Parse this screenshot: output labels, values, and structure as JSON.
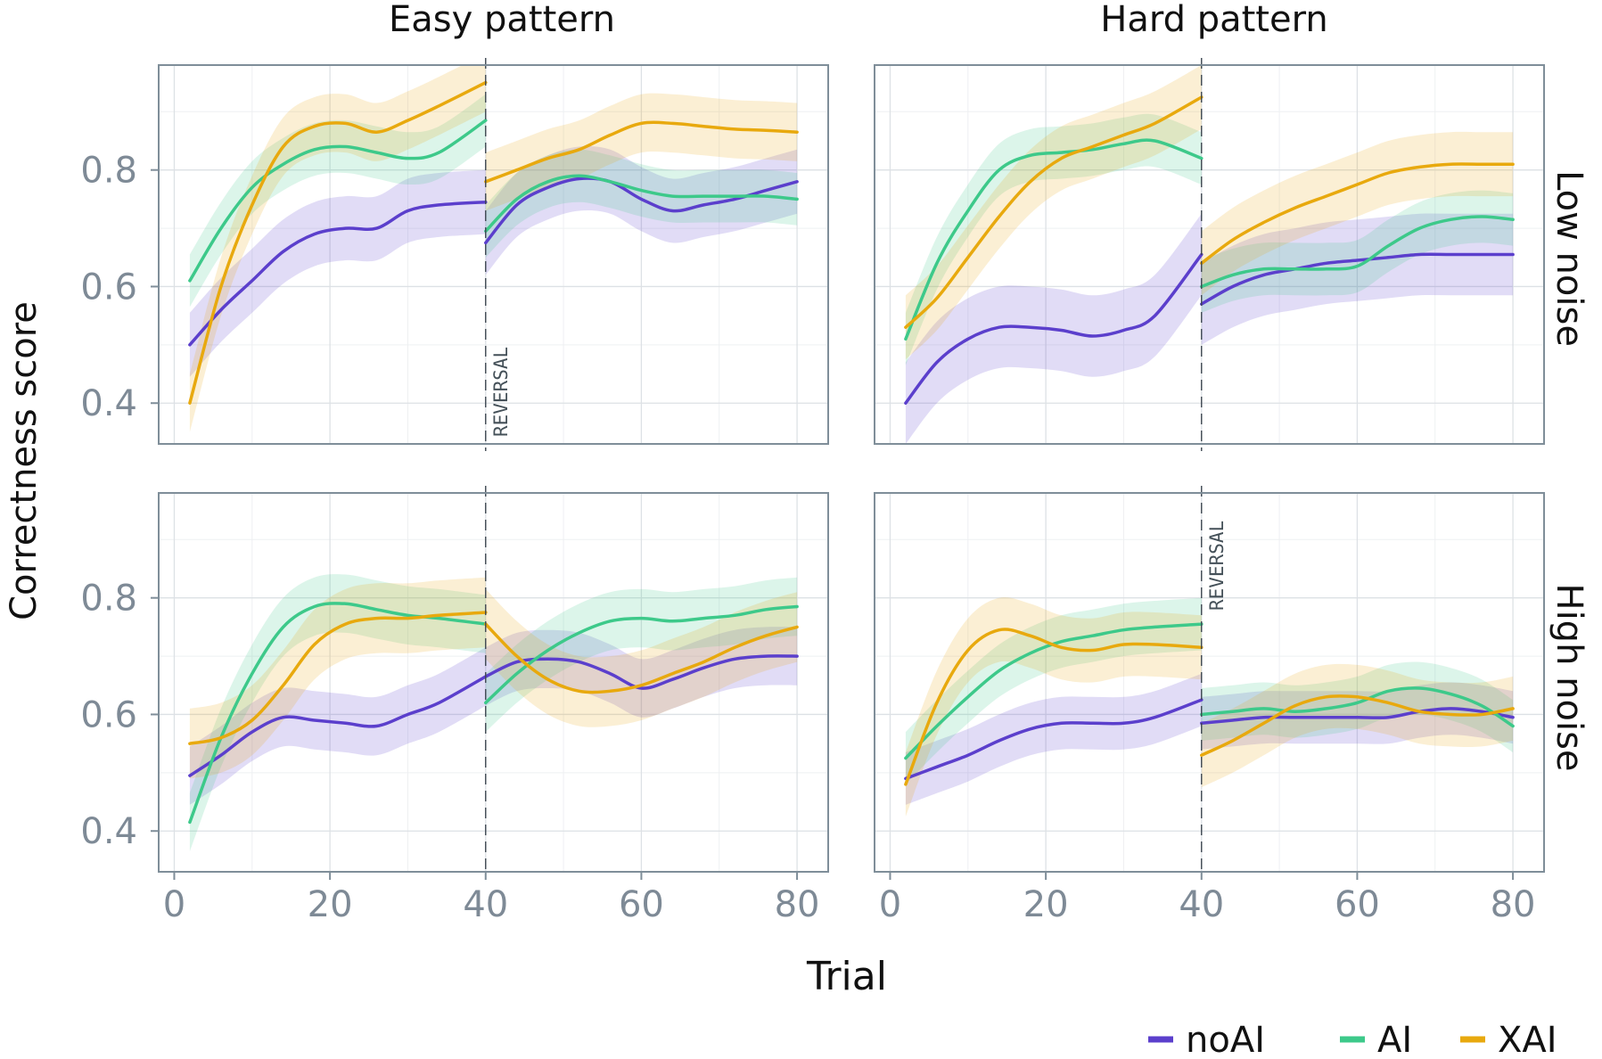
{
  "colors": {
    "noAI": "#5b3fcc",
    "AI": "#3dc98a",
    "XAI": "#e8a90e",
    "panel_border": "#7f8e99",
    "grid": "#dde1e5",
    "tick_text": "#7e8a96"
  },
  "chart_data": {
    "type": "line",
    "xlabel": "Trial",
    "ylabel": "Correctness score",
    "xlim": [
      -2,
      84
    ],
    "ylim": [
      0.33,
      0.98
    ],
    "x_ticks": [
      0,
      20,
      40,
      60,
      80
    ],
    "y_ticks": [
      0.4,
      0.6,
      0.8
    ],
    "x_tick_labels": [
      "0",
      "20",
      "40",
      "60",
      "80"
    ],
    "y_tick_labels": [
      "0.4",
      "0.6",
      "0.8"
    ],
    "column_labels": [
      "Easy pattern",
      "Hard pattern"
    ],
    "row_labels": [
      "Low noise",
      "High noise"
    ],
    "annotation": "REVERSAL",
    "reversal_x": 40,
    "grid": true,
    "legend_position": "bottom-right",
    "legend": [
      "noAI",
      "AI",
      "XAI"
    ],
    "panels": [
      {
        "column": "Easy pattern",
        "row": "Low noise",
        "series": [
          {
            "name": "noAI",
            "x": [
              2,
              6,
              10,
              14,
              18,
              22,
              26,
              30,
              34,
              40,
              40,
              44,
              48,
              52,
              56,
              60,
              64,
              68,
              72,
              76,
              80
            ],
            "y": [
              0.5,
              0.56,
              0.61,
              0.66,
              0.69,
              0.7,
              0.7,
              0.73,
              0.74,
              0.745,
              0.675,
              0.74,
              0.77,
              0.785,
              0.78,
              0.75,
              0.73,
              0.74,
              0.75,
              0.765,
              0.78
            ],
            "band": 0.055
          },
          {
            "name": "AI",
            "x": [
              2,
              6,
              10,
              14,
              18,
              22,
              26,
              30,
              34,
              40,
              40,
              44,
              48,
              52,
              56,
              60,
              64,
              68,
              72,
              76,
              80
            ],
            "y": [
              0.61,
              0.7,
              0.77,
              0.81,
              0.835,
              0.84,
              0.83,
              0.82,
              0.83,
              0.885,
              0.695,
              0.75,
              0.78,
              0.79,
              0.78,
              0.765,
              0.755,
              0.755,
              0.755,
              0.755,
              0.75
            ],
            "band": 0.045
          },
          {
            "name": "XAI",
            "x": [
              2,
              6,
              10,
              14,
              18,
              22,
              26,
              30,
              34,
              40,
              40,
              44,
              48,
              52,
              56,
              60,
              64,
              68,
              72,
              76,
              80
            ],
            "y": [
              0.4,
              0.6,
              0.74,
              0.84,
              0.875,
              0.88,
              0.865,
              0.885,
              0.91,
              0.95,
              0.78,
              0.8,
              0.82,
              0.835,
              0.86,
              0.88,
              0.88,
              0.875,
              0.87,
              0.868,
              0.865
            ],
            "band": 0.05
          }
        ]
      },
      {
        "column": "Hard pattern",
        "row": "Low noise",
        "series": [
          {
            "name": "noAI",
            "x": [
              2,
              6,
              10,
              14,
              18,
              22,
              26,
              30,
              34,
              40,
              40,
              44,
              48,
              52,
              56,
              60,
              64,
              68,
              72,
              76,
              80
            ],
            "y": [
              0.4,
              0.47,
              0.51,
              0.53,
              0.53,
              0.525,
              0.515,
              0.525,
              0.55,
              0.655,
              0.57,
              0.6,
              0.62,
              0.63,
              0.64,
              0.645,
              0.65,
              0.655,
              0.655,
              0.655,
              0.655
            ],
            "band": 0.07
          },
          {
            "name": "AI",
            "x": [
              2,
              6,
              10,
              14,
              18,
              22,
              26,
              30,
              34,
              40,
              40,
              44,
              48,
              52,
              56,
              60,
              64,
              68,
              72,
              76,
              80
            ],
            "y": [
              0.51,
              0.64,
              0.73,
              0.8,
              0.825,
              0.83,
              0.835,
              0.845,
              0.85,
              0.82,
              0.6,
              0.62,
              0.63,
              0.63,
              0.63,
              0.635,
              0.67,
              0.7,
              0.715,
              0.72,
              0.715
            ],
            "band": 0.045
          },
          {
            "name": "XAI",
            "x": [
              2,
              6,
              10,
              14,
              18,
              22,
              26,
              30,
              34,
              40,
              40,
              44,
              48,
              52,
              56,
              60,
              64,
              68,
              72,
              76,
              80
            ],
            "y": [
              0.53,
              0.58,
              0.65,
              0.72,
              0.78,
              0.82,
              0.84,
              0.86,
              0.88,
              0.925,
              0.64,
              0.68,
              0.71,
              0.735,
              0.755,
              0.775,
              0.795,
              0.805,
              0.81,
              0.81,
              0.81
            ],
            "band": 0.055
          }
        ]
      },
      {
        "column": "Easy pattern",
        "row": "High noise",
        "series": [
          {
            "name": "noAI",
            "x": [
              2,
              6,
              10,
              14,
              18,
              22,
              26,
              30,
              34,
              40,
              40,
              44,
              48,
              52,
              56,
              60,
              64,
              68,
              72,
              76,
              80
            ],
            "y": [
              0.495,
              0.53,
              0.57,
              0.595,
              0.59,
              0.585,
              0.58,
              0.6,
              0.62,
              0.665,
              0.665,
              0.69,
              0.695,
              0.69,
              0.67,
              0.645,
              0.66,
              0.68,
              0.695,
              0.7,
              0.7
            ],
            "band": 0.05
          },
          {
            "name": "AI",
            "x": [
              2,
              6,
              10,
              14,
              18,
              22,
              26,
              30,
              34,
              40,
              40,
              44,
              48,
              52,
              56,
              60,
              64,
              68,
              72,
              76,
              80
            ],
            "y": [
              0.415,
              0.56,
              0.67,
              0.75,
              0.785,
              0.79,
              0.78,
              0.77,
              0.765,
              0.755,
              0.62,
              0.67,
              0.71,
              0.74,
              0.76,
              0.765,
              0.76,
              0.765,
              0.77,
              0.78,
              0.785
            ],
            "band": 0.05
          },
          {
            "name": "XAI",
            "x": [
              2,
              6,
              10,
              14,
              18,
              22,
              26,
              30,
              34,
              40,
              40,
              44,
              48,
              52,
              56,
              60,
              64,
              68,
              72,
              76,
              80
            ],
            "y": [
              0.55,
              0.56,
              0.59,
              0.65,
              0.72,
              0.755,
              0.765,
              0.765,
              0.77,
              0.775,
              0.755,
              0.7,
              0.66,
              0.64,
              0.64,
              0.65,
              0.67,
              0.69,
              0.715,
              0.735,
              0.75
            ],
            "band": 0.06
          }
        ]
      },
      {
        "column": "Hard pattern",
        "row": "High noise",
        "series": [
          {
            "name": "noAI",
            "x": [
              2,
              6,
              10,
              14,
              18,
              22,
              26,
              30,
              34,
              40,
              40,
              44,
              48,
              52,
              56,
              60,
              64,
              68,
              72,
              76,
              80
            ],
            "y": [
              0.49,
              0.51,
              0.53,
              0.555,
              0.575,
              0.585,
              0.585,
              0.585,
              0.595,
              0.625,
              0.585,
              0.59,
              0.595,
              0.595,
              0.595,
              0.595,
              0.595,
              0.605,
              0.61,
              0.605,
              0.595
            ],
            "band": 0.045
          },
          {
            "name": "AI",
            "x": [
              2,
              6,
              10,
              14,
              18,
              22,
              26,
              30,
              34,
              40,
              40,
              44,
              48,
              52,
              56,
              60,
              64,
              68,
              72,
              76,
              80
            ],
            "y": [
              0.525,
              0.58,
              0.63,
              0.675,
              0.705,
              0.725,
              0.735,
              0.745,
              0.75,
              0.755,
              0.6,
              0.605,
              0.61,
              0.605,
              0.61,
              0.62,
              0.64,
              0.645,
              0.635,
              0.615,
              0.58
            ],
            "band": 0.045
          },
          {
            "name": "XAI",
            "x": [
              2,
              6,
              10,
              14,
              18,
              22,
              26,
              30,
              34,
              40,
              40,
              44,
              48,
              52,
              56,
              60,
              64,
              68,
              72,
              76,
              80
            ],
            "y": [
              0.48,
              0.62,
              0.71,
              0.745,
              0.735,
              0.715,
              0.71,
              0.72,
              0.72,
              0.715,
              0.53,
              0.555,
              0.585,
              0.615,
              0.63,
              0.63,
              0.62,
              0.605,
              0.6,
              0.6,
              0.61
            ],
            "band": 0.055
          }
        ]
      }
    ]
  }
}
